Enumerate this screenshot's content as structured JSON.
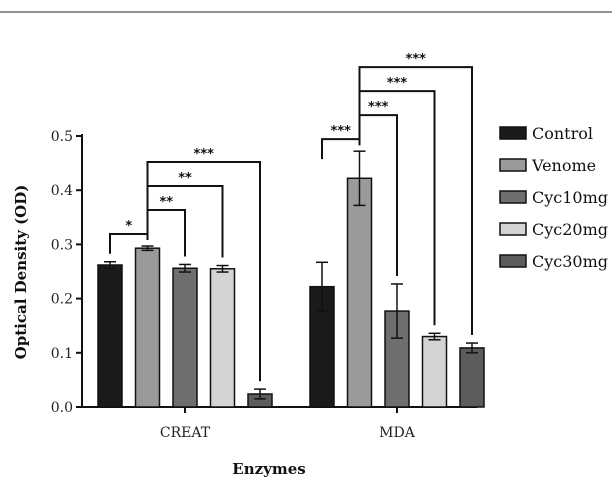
{
  "chart_data": {
    "type": "bar",
    "title": "",
    "xlabel": "Enzymes",
    "ylabel": "Optical Density (OD)",
    "ylim": [
      0,
      0.5
    ],
    "yticks": [
      "0.0",
      "0.1",
      "0.2",
      "0.3",
      "0.4",
      "0.5"
    ],
    "categories": [
      "CREAT",
      "MDA"
    ],
    "legend_position": "right",
    "series": [
      {
        "name": "Control",
        "values": [
          0.262,
          0.222
        ],
        "errors": [
          0.006,
          0.045
        ],
        "color": "#1a1a1a"
      },
      {
        "name": "Venome",
        "values": [
          0.293,
          0.422
        ],
        "errors": [
          0.004,
          0.05
        ],
        "color": "#9a9a9a"
      },
      {
        "name": "Cyc10mg",
        "values": [
          0.256,
          0.177
        ],
        "errors": [
          0.007,
          0.05
        ],
        "color": "#6e6e6e"
      },
      {
        "name": "Cyc20mg",
        "values": [
          0.255,
          0.13
        ],
        "errors": [
          0.006,
          0.006
        ],
        "color": "#d4d4d4"
      },
      {
        "name": "Cyc30mg",
        "values": [
          0.024,
          0.109
        ],
        "errors": [
          0.009,
          0.009
        ],
        "color": "#5c5c5c"
      }
    ],
    "significance": [
      {
        "category": 0,
        "from": 0,
        "to": 1,
        "label": "*"
      },
      {
        "category": 0,
        "from": 1,
        "to": 2,
        "label": "**"
      },
      {
        "category": 0,
        "from": 1,
        "to": 3,
        "label": "**"
      },
      {
        "category": 0,
        "from": 1,
        "to": 4,
        "label": "***"
      },
      {
        "category": 1,
        "from": 0,
        "to": 1,
        "label": "***"
      },
      {
        "category": 1,
        "from": 1,
        "to": 2,
        "label": "***"
      },
      {
        "category": 1,
        "from": 1,
        "to": 3,
        "label": "***"
      },
      {
        "category": 1,
        "from": 1,
        "to": 4,
        "label": "***"
      }
    ]
  }
}
